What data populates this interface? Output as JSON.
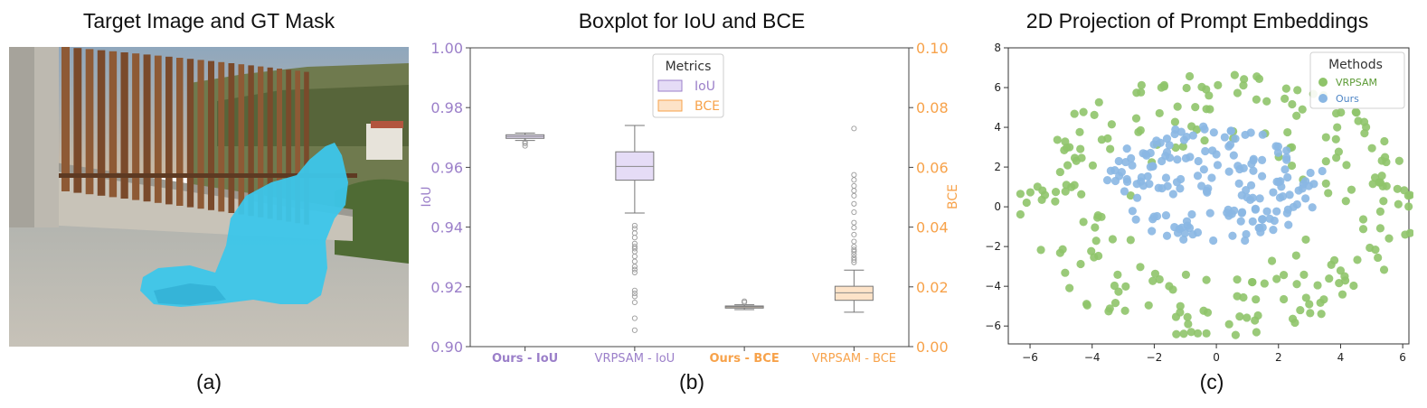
{
  "panels": {
    "a": {
      "title": "Target Image and GT Mask",
      "letter": "(a)"
    },
    "b": {
      "title": "Boxplot for IoU and BCE",
      "letter": "(b)"
    },
    "c": {
      "title": "2D Projection of Prompt Embeddings",
      "letter": "(c)"
    }
  },
  "chart_data": [
    {
      "type": "image",
      "description_colors": {
        "mask": "#3cc6ea"
      }
    },
    {
      "type": "boxplot",
      "left_axis": {
        "label": "IoU",
        "range": [
          0.9,
          1.0
        ],
        "ticks": [
          "0.90",
          "0.92",
          "0.94",
          "0.96",
          "0.98",
          "1.00"
        ],
        "color": "#9b7fc9"
      },
      "right_axis": {
        "label": "BCE",
        "range": [
          0.0,
          0.1
        ],
        "ticks": [
          "0.00",
          "0.02",
          "0.04",
          "0.06",
          "0.08",
          "0.10"
        ],
        "color": "#f7a24a"
      },
      "legend": {
        "title": "Metrics",
        "placement": "top-center",
        "entries": [
          {
            "label": "IoU",
            "fill": "#e5dcf6",
            "edge": "#9b7fc9",
            "text_color": "#9b7fc9"
          },
          {
            "label": "BCE",
            "fill": "#fde3c8",
            "edge": "#f7a24a",
            "text_color": "#f7a24a"
          }
        ]
      },
      "boxes": [
        {
          "label": "Ours - IoU",
          "axis": "left",
          "bold": true,
          "color": "#9b7fc9",
          "fill": "#e5dcf6",
          "q1": 0.9697,
          "median": 0.9703,
          "q3": 0.9709,
          "whisker_low": 0.969,
          "whisker_high": 0.9715,
          "outliers": [
            0.9685,
            0.968,
            0.9672
          ]
        },
        {
          "label": "VRPSAM - IoU",
          "axis": "left",
          "bold": false,
          "color": "#9b7fc9",
          "fill": "#e5dcf6",
          "q1": 0.9557,
          "median": 0.9603,
          "q3": 0.9652,
          "whisker_low": 0.9447,
          "whisker_high": 0.974,
          "outliers": [
            0.9405,
            0.9395,
            0.938,
            0.9365,
            0.9345,
            0.9335,
            0.9328,
            0.9318,
            0.9302,
            0.9285,
            0.9268,
            0.9258,
            0.9248,
            0.9188,
            0.9178,
            0.9168,
            0.9148,
            0.9095,
            0.9055
          ]
        },
        {
          "label": "Ours - BCE",
          "axis": "right",
          "bold": true,
          "color": "#f7a24a",
          "fill": "#fde3c8",
          "q1": 0.0129,
          "median": 0.0133,
          "q3": 0.0136,
          "whisker_low": 0.0124,
          "whisker_high": 0.014,
          "outliers": [
            0.0148,
            0.0152
          ]
        },
        {
          "label": "VRPSAM - BCE",
          "axis": "right",
          "bold": false,
          "color": "#f7a24a",
          "fill": "#fde3c8",
          "q1": 0.0155,
          "median": 0.018,
          "q3": 0.0202,
          "whisker_low": 0.0115,
          "whisker_high": 0.0256,
          "outliers": [
            0.0282,
            0.029,
            0.0298,
            0.0308,
            0.0318,
            0.0325,
            0.0335,
            0.0352,
            0.0375,
            0.0398,
            0.0415,
            0.045,
            0.0478,
            0.0505,
            0.0522,
            0.0538,
            0.0558,
            0.0575,
            0.073
          ]
        }
      ]
    },
    {
      "type": "scatter",
      "xlim": [
        -6.7,
        6.2
      ],
      "ylim": [
        -6.9,
        8.0
      ],
      "xticks": [
        "-6",
        "-4",
        "-2",
        "0",
        "2",
        "4",
        "6"
      ],
      "yticks": [
        "-6",
        "-4",
        "-2",
        "0",
        "2",
        "4",
        "6",
        "8"
      ],
      "legend": {
        "title": "Methods",
        "placement": "top-right"
      },
      "series": [
        {
          "name": "VRPSAM",
          "color": "#8fc46a",
          "points": []
        },
        {
          "name": "Ours",
          "color": "#8ab7e3",
          "points": []
        }
      ]
    }
  ]
}
